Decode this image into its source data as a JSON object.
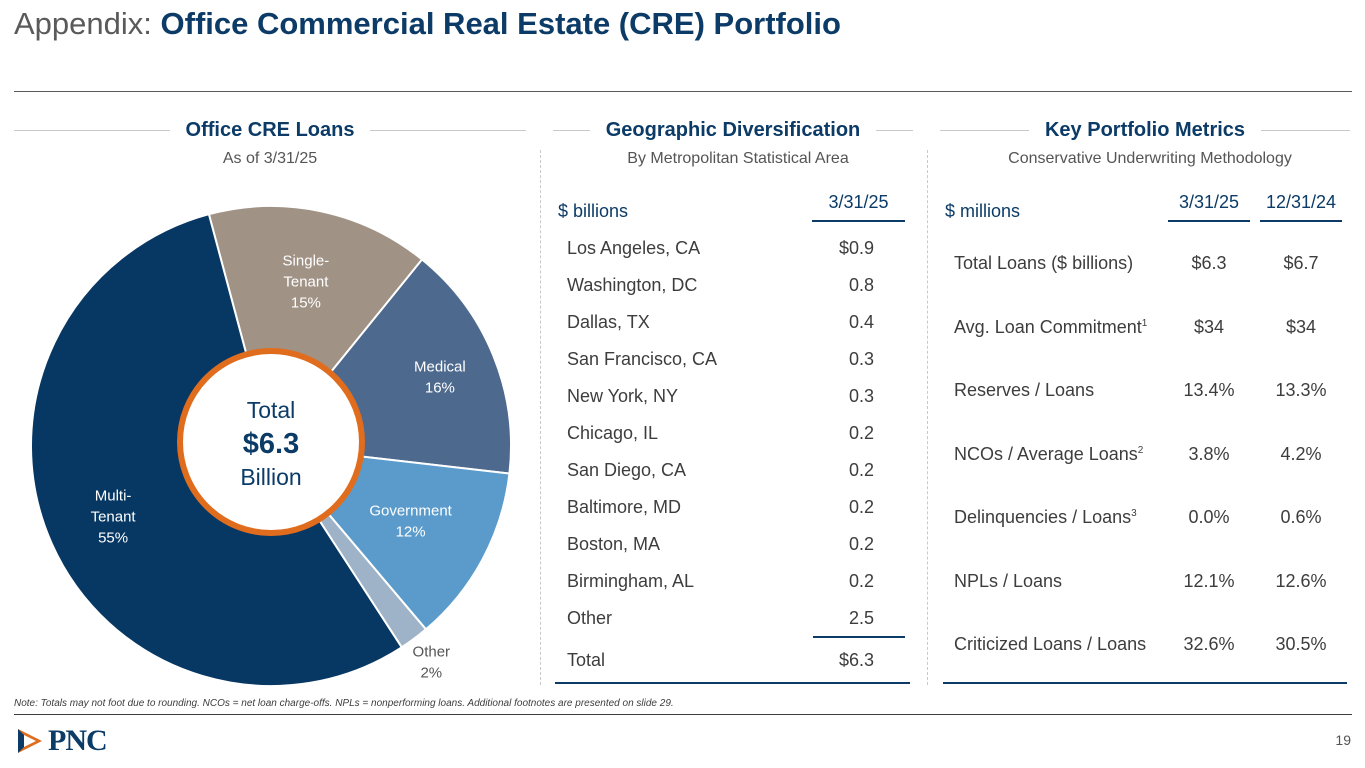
{
  "header": {
    "title_prefix": "Appendix:",
    "title_main": "Office Commercial Real Estate (CRE) Portfolio"
  },
  "loans_section": {
    "title": "Office CRE Loans",
    "subtitle": "As of 3/31/25",
    "center": {
      "line1": "Total",
      "line2": "$6.3",
      "line3": "Billion"
    }
  },
  "geo_section": {
    "title": "Geographic Diversification",
    "subtitle": "By Metropolitan Statistical Area",
    "unit_label": "$ billions",
    "column_label": "3/31/25",
    "rows": [
      {
        "name": "Los Angeles, CA",
        "value": "$0.9"
      },
      {
        "name": "Washington, DC",
        "value": "0.8"
      },
      {
        "name": "Dallas, TX",
        "value": "0.4"
      },
      {
        "name": "San Francisco, CA",
        "value": "0.3"
      },
      {
        "name": "New York, NY",
        "value": "0.3"
      },
      {
        "name": "Chicago, IL",
        "value": "0.2"
      },
      {
        "name": "San Diego, CA",
        "value": "0.2"
      },
      {
        "name": "Baltimore, MD",
        "value": "0.2"
      },
      {
        "name": "Boston, MA",
        "value": "0.2"
      },
      {
        "name": "Birmingham, AL",
        "value": "0.2"
      },
      {
        "name": "Other",
        "value": "2.5"
      }
    ],
    "total": {
      "name": "Total",
      "value": "$6.3"
    }
  },
  "metrics_section": {
    "title": "Key Portfolio Metrics",
    "subtitle": "Conservative Underwriting Methodology",
    "unit_label": "$ millions",
    "col1": "3/31/25",
    "col2": "12/31/24",
    "rows": [
      {
        "name": "Total Loans ($ billions)",
        "sup": "",
        "v1": "$6.3",
        "v2": "$6.7"
      },
      {
        "name": "Avg. Loan Commitment",
        "sup": "1",
        "v1": "$34",
        "v2": "$34"
      },
      {
        "name": "Reserves / Loans",
        "sup": "",
        "v1": "13.4%",
        "v2": "13.3%"
      },
      {
        "name": "NCOs / Average Loans",
        "sup": "2",
        "v1": "3.8%",
        "v2": "4.2%"
      },
      {
        "name": "Delinquencies / Loans",
        "sup": "3",
        "v1": "0.0%",
        "v2": "0.6%"
      },
      {
        "name": "NPLs / Loans",
        "sup": "",
        "v1": "12.1%",
        "v2": "12.6%"
      },
      {
        "name": "Criticized Loans / Loans",
        "sup": "",
        "v1": "32.6%",
        "v2": "30.5%"
      }
    ]
  },
  "chart_data": {
    "type": "pie",
    "title": "Office CRE Loans",
    "subtitle": "As of 3/31/25",
    "categories": [
      "Single-Tenant",
      "Medical",
      "Government",
      "Other",
      "Multi-Tenant"
    ],
    "values": [
      15,
      16,
      12,
      2,
      55
    ],
    "unit": "%",
    "label_lines": [
      [
        "Single-",
        "Tenant",
        "15%"
      ],
      [
        "Medical",
        "16%"
      ],
      [
        "Government",
        "12%"
      ],
      [
        "Other",
        "2%"
      ],
      [
        "Multi-",
        "Tenant",
        "55%"
      ]
    ],
    "colors": [
      "#a09285",
      "#4d6a8e",
      "#5a9bcb",
      "#9eb3c8",
      "#073763"
    ],
    "center_ring_color": "#e06d1e",
    "total": "$6.3 Billion"
  },
  "footer": {
    "note": "Note: Totals may not foot due to rounding. NCOs = net loan charge-offs. NPLs = nonperforming loans. Additional footnotes are presented on slide 29.",
    "logo_text": "PNC",
    "page_number": "19"
  },
  "colors": {
    "brand_blue": "#0b3b66",
    "brand_orange": "#e06d1e"
  }
}
